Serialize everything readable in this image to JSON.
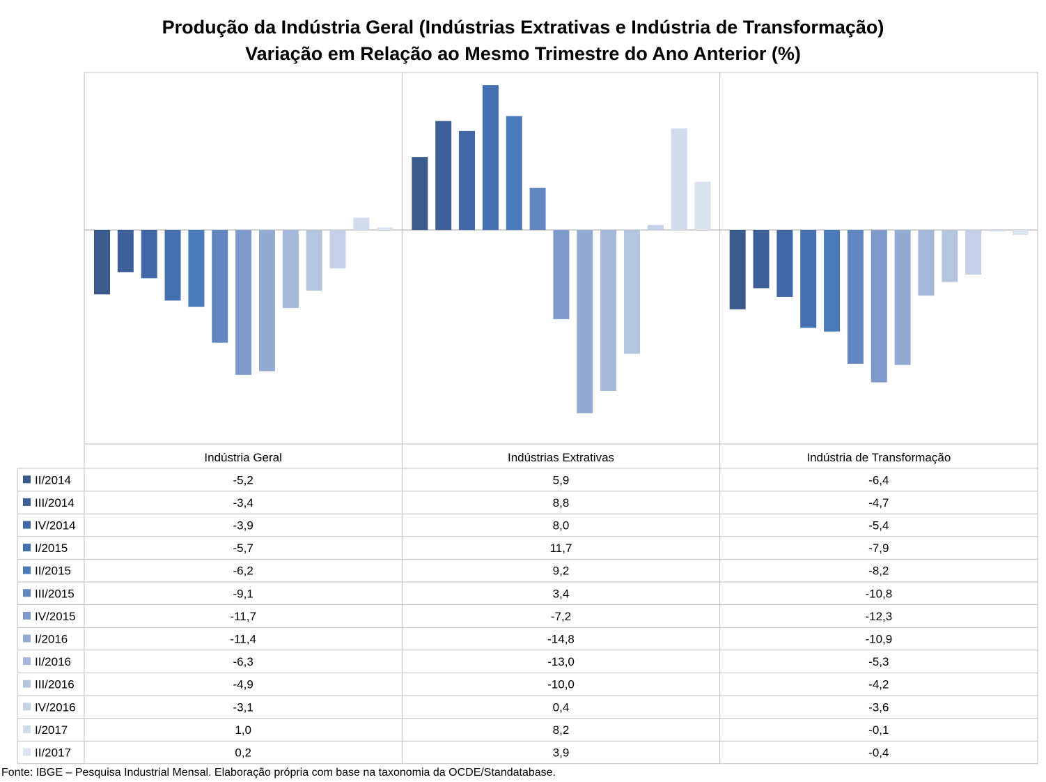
{
  "title": "Produção da Indústria Geral (Indústrias Extrativas e Indústria de Transformação)",
  "subtitle": "Variação em Relação ao Mesmo Trimestre do Ano Anterior (%)",
  "source": "Fonte: IBGE – Pesquisa Industrial Mensal. Elaboração própria com base na taxonomia da OCDE/Standatabase.",
  "chart_data": {
    "type": "bar",
    "categories": [
      "Indústria Geral",
      "Indústrias Extrativas",
      "Indústria de Transformação"
    ],
    "ylim": [
      -17,
      13
    ],
    "grid": false,
    "legend": "table-left",
    "series": [
      {
        "name": "II/2014",
        "color": "#3a5a8c",
        "values": [
          -5.2,
          5.9,
          -6.4
        ],
        "labels": [
          "-5,2",
          "5,9",
          "-6,4"
        ]
      },
      {
        "name": "III/2014",
        "color": "#3d609a",
        "values": [
          -3.4,
          8.8,
          -4.7
        ],
        "labels": [
          "-3,4",
          "8,8",
          "-4,7"
        ]
      },
      {
        "name": "IV/2014",
        "color": "#4167a6",
        "values": [
          -3.9,
          8.0,
          -5.4
        ],
        "labels": [
          "-3,9",
          "8,0",
          "-5,4"
        ]
      },
      {
        "name": "I/2015",
        "color": "#4470b0",
        "values": [
          -5.7,
          11.7,
          -7.9
        ],
        "labels": [
          "-5,7",
          "11,7",
          "-7,9"
        ]
      },
      {
        "name": "II/2015",
        "color": "#4a7aba",
        "values": [
          -6.2,
          9.2,
          -8.2
        ],
        "labels": [
          "-6,2",
          "9,2",
          "-8,2"
        ]
      },
      {
        "name": "III/2015",
        "color": "#6286c0",
        "values": [
          -9.1,
          3.4,
          -10.8
        ],
        "labels": [
          "-9,1",
          "3,4",
          "-10,8"
        ]
      },
      {
        "name": "IV/2015",
        "color": "#7e9acb",
        "values": [
          -11.7,
          -7.2,
          -12.3
        ],
        "labels": [
          "-11,7",
          "-7,2",
          "-12,3"
        ]
      },
      {
        "name": "I/2016",
        "color": "#93aad2",
        "values": [
          -11.4,
          -14.8,
          -10.9
        ],
        "labels": [
          "-11,4",
          "-14,8",
          "-10,9"
        ]
      },
      {
        "name": "II/2016",
        "color": "#a5b8da",
        "values": [
          -6.3,
          -13.0,
          -5.3
        ],
        "labels": [
          "-6,3",
          "-13,0",
          "-5,3"
        ]
      },
      {
        "name": "III/2016",
        "color": "#b4c5e0",
        "values": [
          -4.9,
          -10.0,
          -4.2
        ],
        "labels": [
          "-4,9",
          "-10,0",
          "-4,2"
        ]
      },
      {
        "name": "IV/2016",
        "color": "#c4d1e7",
        "values": [
          -3.1,
          0.4,
          -3.6
        ],
        "labels": [
          "-3,1",
          "0,4",
          "-3,6"
        ]
      },
      {
        "name": "I/2017",
        "color": "#d0dbec",
        "values": [
          1.0,
          8.2,
          -0.1
        ],
        "labels": [
          "1,0",
          "8,2",
          "-0,1"
        ]
      },
      {
        "name": "II/2017",
        "color": "#dbe3f1",
        "values": [
          0.2,
          3.9,
          -0.4
        ],
        "labels": [
          "0,2",
          "3,9",
          "-0,4"
        ]
      }
    ]
  }
}
